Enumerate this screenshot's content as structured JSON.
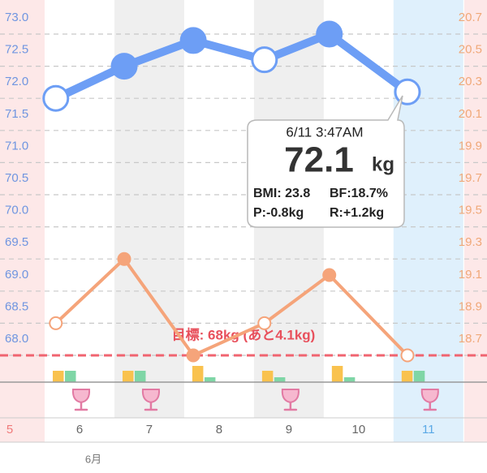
{
  "chart_data": {
    "type": "line",
    "x": [
      5.66,
      6.64,
      7.63,
      8.65,
      9.58,
      10.7
    ],
    "xlim": [
      4.86,
      11.84
    ],
    "xticks": [
      5,
      6,
      7,
      8,
      9,
      10,
      11
    ],
    "day_styles": [
      "sunday",
      "weekday",
      "shaded",
      "weekday",
      "shaded",
      "weekday",
      "saturday"
    ],
    "month_label": "6月",
    "ylim": [
      68.0,
      73.0
    ],
    "yticks": [
      {
        "value": 73,
        "label": "73.0"
      },
      72.5,
      {
        "value": 72,
        "label": "72.0"
      },
      71.5,
      {
        "value": 71,
        "label": "71.0"
      },
      70.5,
      {
        "value": 70,
        "label": "70.0"
      },
      69.5,
      {
        "value": 69,
        "label": "69.0"
      },
      68.5,
      {
        "value": 68,
        "label": "68.0"
      }
    ],
    "y2lim": [
      18.7,
      20.7
    ],
    "y2ticks": [
      20.7,
      20.5,
      20.3,
      20.1,
      19.9,
      19.7,
      19.5,
      19.3,
      19.1,
      18.9,
      18.7
    ],
    "grid": true,
    "series": [
      {
        "color": "#6d9ef5",
        "values": [
          72.0,
          72.5,
          72.9,
          72.6,
          73.0,
          72.1
        ],
        "filled": [
          false,
          true,
          true,
          false,
          true,
          false
        ]
      },
      {
        "color": "#f5a47a",
        "axis": "y2",
        "values": [
          18.9,
          19.3,
          18.7,
          18.9,
          19.2,
          18.7
        ],
        "filled": [
          false,
          true,
          true,
          false,
          true,
          false
        ]
      }
    ],
    "goal": {
      "value": 68,
      "label": "目標: 68kg (あと4.1kg)",
      "color": "#f06470"
    },
    "activity": {
      "ylim": [
        0,
        20
      ],
      "series": [
        {
          "color": "#f9c24e",
          "values": [
            14,
            14,
            20,
            14,
            20,
            14
          ]
        },
        {
          "color": "#7fd6a6",
          "values": [
            14,
            14,
            6,
            6,
            6,
            14
          ]
        }
      ]
    },
    "alcohol": [
      true,
      true,
      false,
      true,
      false,
      true
    ],
    "tooltip": {
      "date": "6/11 3:47AM",
      "value": "72.1",
      "unit": "kg",
      "bmi": "BMI: 23.8",
      "bf": "BF:18.7%",
      "p": "P:-0.8kg",
      "r": "R:+1.2kg"
    }
  }
}
